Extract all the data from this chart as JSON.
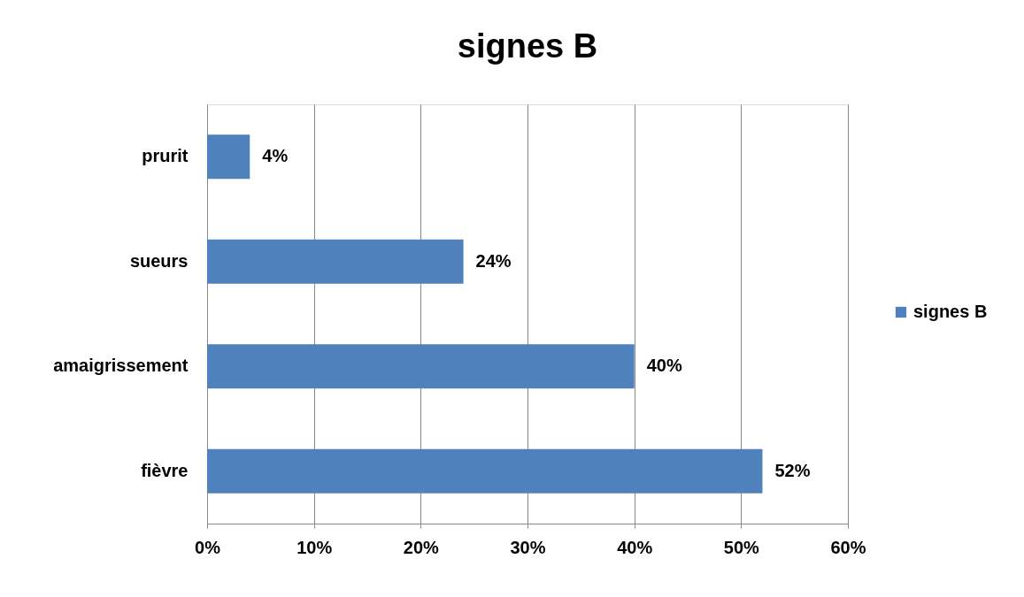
{
  "chart_data": {
    "type": "bar",
    "orientation": "horizontal",
    "title": "signes B",
    "categories": [
      "prurit",
      "sueurs",
      "amaigrissement",
      "fièvre"
    ],
    "series": [
      {
        "name": "signes B",
        "color": "#4f81bd",
        "values": [
          4,
          24,
          40,
          52
        ],
        "value_labels": [
          "4%",
          "24%",
          "40%",
          "52%"
        ]
      }
    ],
    "xlim": [
      0,
      60
    ],
    "xticks": [
      {
        "value": 0,
        "label": "0%"
      },
      {
        "value": 10,
        "label": "10%"
      },
      {
        "value": 20,
        "label": "20%"
      },
      {
        "value": 30,
        "label": "30%"
      },
      {
        "value": 40,
        "label": "40%"
      },
      {
        "value": 50,
        "label": "50%"
      },
      {
        "value": 60,
        "label": "60%"
      }
    ],
    "grid": "x",
    "legend": "right"
  }
}
